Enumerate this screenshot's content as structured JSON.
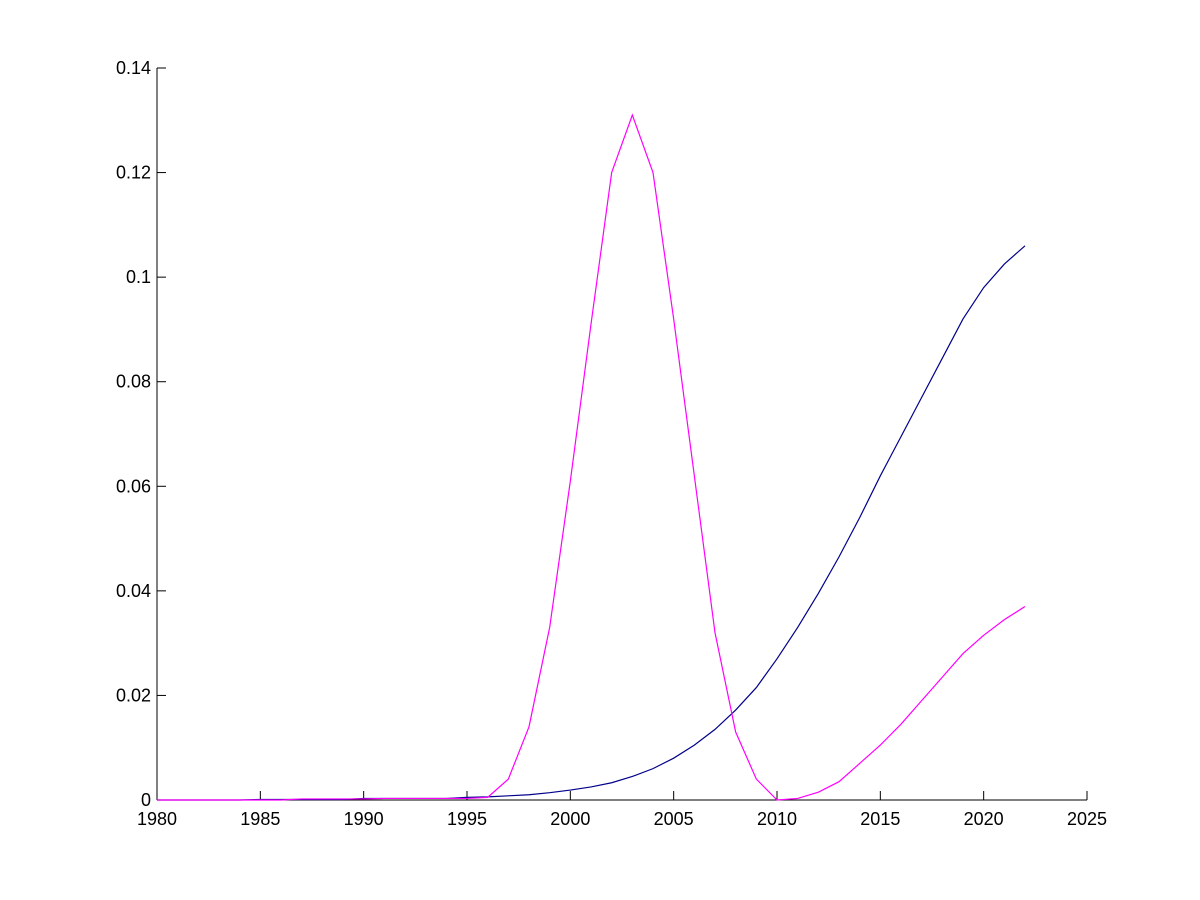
{
  "chart_data": {
    "type": "line",
    "x": [
      1980,
      1981,
      1982,
      1983,
      1984,
      1985,
      1986,
      1987,
      1988,
      1989,
      1990,
      1991,
      1992,
      1993,
      1994,
      1995,
      1996,
      1997,
      1998,
      1999,
      2000,
      2001,
      2002,
      2003,
      2004,
      2005,
      2006,
      2007,
      2008,
      2009,
      2010,
      2011,
      2012,
      2013,
      2014,
      2015,
      2016,
      2017,
      2018,
      2019,
      2020,
      2021,
      2022
    ],
    "series": [
      {
        "color": "#00008b",
        "values": [
          0,
          0,
          0,
          0,
          0,
          0.0001,
          0.0001,
          0.0001,
          0.0001,
          0.0001,
          0.0003,
          0.0003,
          0.0003,
          0.0003,
          0.0003,
          0.0005,
          0.0006,
          0.0008,
          0.001,
          0.0014,
          0.0019,
          0.0025,
          0.0033,
          0.0045,
          0.006,
          0.008,
          0.0105,
          0.0135,
          0.0172,
          0.0215,
          0.027,
          0.033,
          0.0395,
          0.0465,
          0.054,
          0.062,
          0.0695,
          0.077,
          0.0845,
          0.092,
          0.098,
          0.1025,
          0.106
        ]
      },
      {
        "color": "#ff00ff",
        "values": [
          0,
          0,
          0,
          0,
          0,
          0,
          0,
          0.0002,
          0.0002,
          0.0002,
          0.0002,
          0.0003,
          0.0003,
          0.0003,
          0.0003,
          0.0003,
          0.0005,
          0.004,
          0.014,
          0.033,
          0.061,
          0.091,
          0.12,
          0.131,
          0.12,
          0.092,
          0.062,
          0.032,
          0.013,
          0.004,
          0,
          0.0003,
          0.0015,
          0.0035,
          0.007,
          0.0105,
          0.0145,
          0.019,
          0.0235,
          0.028,
          0.0315,
          0.0345,
          0.037
        ]
      }
    ],
    "xlim": [
      1980,
      2025
    ],
    "xticks": [
      1980,
      1985,
      1990,
      1995,
      2000,
      2005,
      2010,
      2015,
      2020,
      2025
    ],
    "ylim": [
      0,
      0.14
    ],
    "yticks": [
      0,
      0.02,
      0.04,
      0.06,
      0.08,
      0.1,
      0.12,
      0.14
    ]
  }
}
